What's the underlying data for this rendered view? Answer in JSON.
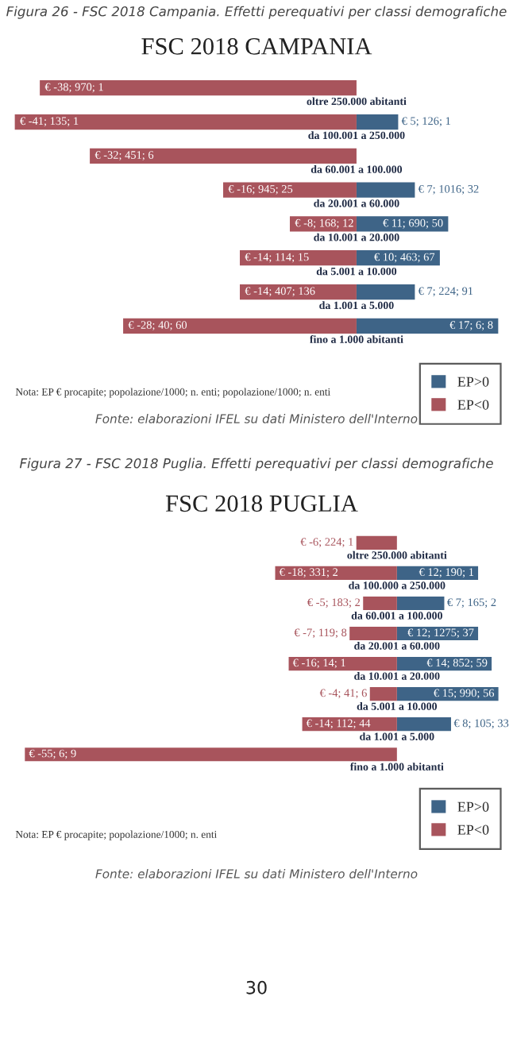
{
  "chart_data": [
    {
      "type": "bar",
      "orientation": "horizontal",
      "stacked": true,
      "title": "FSC 2018 CAMPANIA",
      "categories": [
        "oltre 250.000 abitanti",
        "da 100.001 a 250.000",
        "da 60.001 a 100.000",
        "da 20.001 a 60.000",
        "da 10.001 a 20.000",
        "da 5.001 a 10.000",
        "da 1.001 a 5.000",
        "fino a 1.000 abitanti"
      ],
      "series": [
        {
          "name": "EP>0",
          "color": "#3e6487",
          "values": [
            null,
            5,
            null,
            7,
            11,
            10,
            7,
            17
          ],
          "value_labels": [
            null,
            "€ 5; 126; 1",
            null,
            "€ 7; 1016; 32",
            "€ 11; 690; 50",
            "€ 10; 463; 67",
            "€ 7; 224; 91",
            "€ 17; 6; 8"
          ]
        },
        {
          "name": "EP<0",
          "color": "#a8545c",
          "values": [
            -38,
            -41,
            -32,
            -16,
            -8,
            -14,
            -14,
            -28
          ],
          "value_labels": [
            "€ -38; 970; 1",
            "€ -41; 135; 1",
            "€ -32; 451; 6",
            "€ -16; 945; 25",
            "€ -8; 168; 12",
            "€ -14; 114; 15",
            "€ -14; 407; 136",
            "€ -28; 40; 60"
          ]
        }
      ],
      "legend": "bottom right",
      "annotations": [
        "Figura 26 - FSC 2018 Campania. Effetti perequativi per classi demografiche",
        "Nota: EP € procapite; popolazione/1000; n. enti; popolazione/1000; n. enti",
        "Fonte: elaborazioni IFEL su dati Ministero dell'Interno"
      ]
    },
    {
      "type": "bar",
      "orientation": "horizontal",
      "stacked": true,
      "title": "FSC 2018 PUGLIA",
      "categories": [
        "oltre 250.000 abitanti",
        "da 100.000 a 250.000",
        "da 60.001 a 100.000",
        "da 20.001 a 60.000",
        "da 10.001 a 20.000",
        "da 5.001 a 10.000",
        "da 1.001 a 5.000",
        "fino a 1.000 abitanti"
      ],
      "series": [
        {
          "name": "EP>0",
          "color": "#3e6487",
          "values": [
            null,
            12,
            7,
            12,
            14,
            15,
            8,
            null
          ],
          "value_labels": [
            null,
            "€ 12; 190; 1",
            "€ 7; 165; 2",
            "€ 12; 1275; 37",
            "€ 14; 852; 59",
            "€ 15; 990; 56",
            "€ 8; 105; 33",
            null
          ]
        },
        {
          "name": "EP<0",
          "color": "#a8545c",
          "values": [
            -6,
            -18,
            -5,
            -7,
            -16,
            -4,
            -14,
            -55
          ],
          "value_labels": [
            "€ -6; 224; 1",
            "€ -18; 331; 2",
            "€ -5; 183; 2",
            "€ -7; 119; 8",
            "€ -16; 14; 1",
            "€ -4; 41; 6",
            "€ -14; 112; 44",
            "€ -55; 6; 9"
          ]
        }
      ],
      "legend": "bottom right",
      "annotations": [
        "Figura 27 - FSC 2018 Puglia. Effetti perequativi per classi demografiche",
        "Nota: EP € procapite; popolazione/1000; n. enti",
        "Fonte: elaborazioni IFEL su dati Ministero dell'Interno",
        "30"
      ]
    }
  ]
}
